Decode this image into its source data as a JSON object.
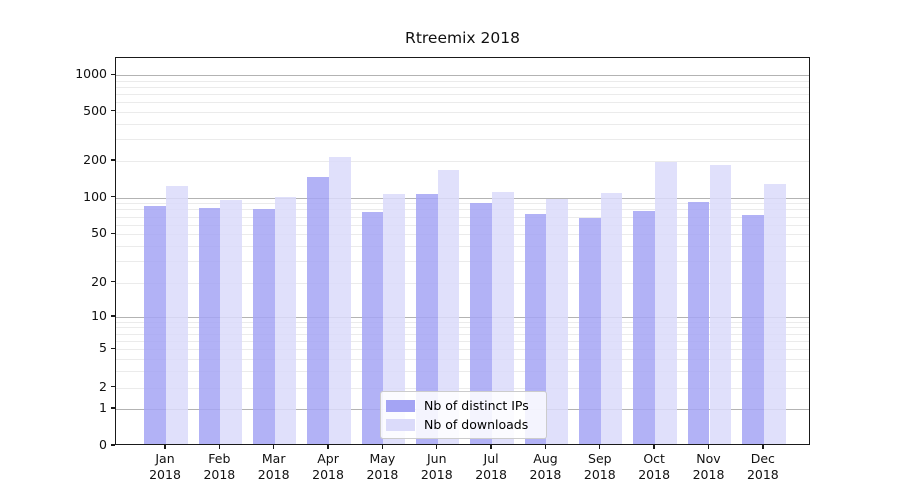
{
  "chart_data": {
    "type": "bar",
    "title": "Rtreemix 2018",
    "xlabel": "",
    "ylabel": "",
    "scale": "symlog",
    "grid": true,
    "legend_position": "lower center",
    "months": [
      "Jan",
      "Feb",
      "Mar",
      "Apr",
      "May",
      "Jun",
      "Jul",
      "Aug",
      "Sep",
      "Oct",
      "Nov",
      "Dec"
    ],
    "year_label": "2018",
    "categories": [
      "Jan 2018",
      "Feb 2018",
      "Mar 2018",
      "Apr 2018",
      "May 2018",
      "Jun 2018",
      "Jul 2018",
      "Aug 2018",
      "Sep 2018",
      "Oct 2018",
      "Nov 2018",
      "Dec 2018"
    ],
    "yticks": [
      0,
      1,
      2,
      5,
      10,
      20,
      50,
      100,
      200,
      500,
      1000
    ],
    "ylim": [
      0,
      1400
    ],
    "series": [
      {
        "name": "Nb of distinct IPs",
        "color": "#a4a4f4",
        "values": [
          83,
          79,
          78,
          143,
          73,
          104,
          87,
          71,
          65,
          75,
          88,
          69
        ]
      },
      {
        "name": "Nb of downloads",
        "color": "#dbdbfa",
        "values": [
          121,
          93,
          97,
          206,
          104,
          163,
          107,
          94,
          105,
          190,
          180,
          124
        ]
      }
    ]
  },
  "colors": {
    "major_gridline": "#b3b3b3",
    "minor_gridline": "#ebebeb",
    "axis_spine": "#1a1a1a",
    "background": "#ffffff"
  }
}
